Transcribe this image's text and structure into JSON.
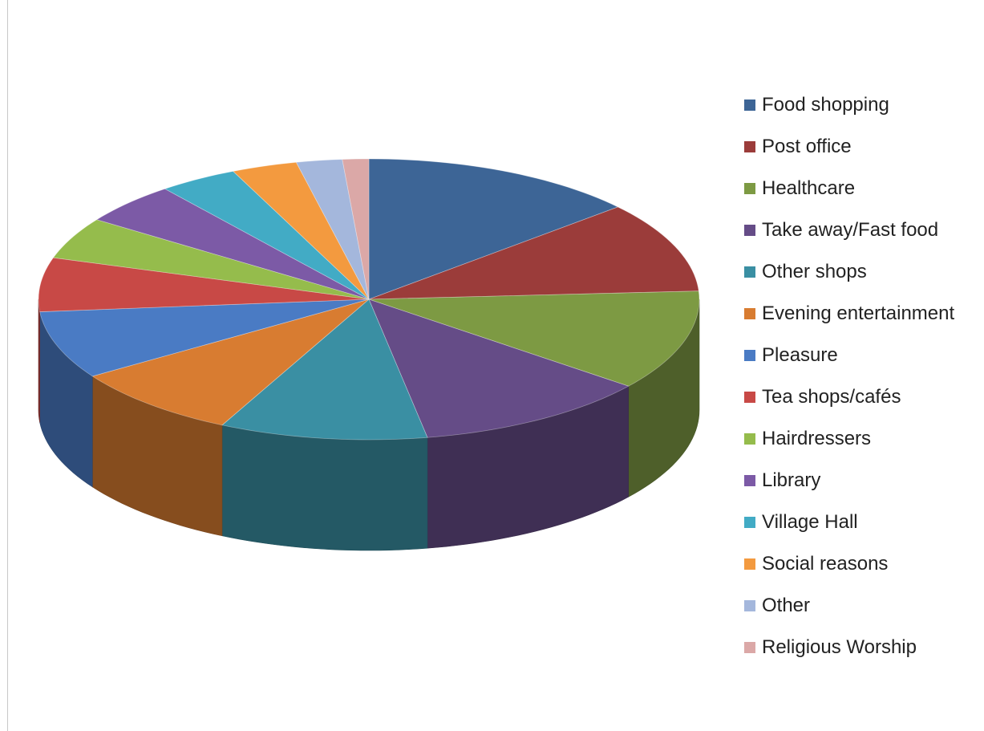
{
  "chart_data": {
    "type": "pie",
    "variant": "3d",
    "title": "",
    "legend_position": "right",
    "categories": [
      "Food shopping",
      "Post office",
      "Healthcare",
      "Take away/Fast food",
      "Other shops",
      "Evening entertainment",
      "Pleasure",
      "Tea shops/cafés",
      "Hairdressers",
      "Library",
      "Village Hall",
      "Social reasons",
      "Other",
      "Religious Worship"
    ],
    "values": [
      12.7,
      9.8,
      10.8,
      10.8,
      9.5,
      7.9,
      7.3,
      5.8,
      4.5,
      4.5,
      3.6,
      3.0,
      2.1,
      1.2
    ],
    "colors": [
      "#3d6596",
      "#9b3c3a",
      "#7d9a43",
      "#654c87",
      "#3a8fa3",
      "#d87c31",
      "#4a7bc4",
      "#c84946",
      "#95bc4c",
      "#7c5aa6",
      "#42abc5",
      "#f39a3f",
      "#a4b7dc",
      "#dba8a7"
    ]
  }
}
